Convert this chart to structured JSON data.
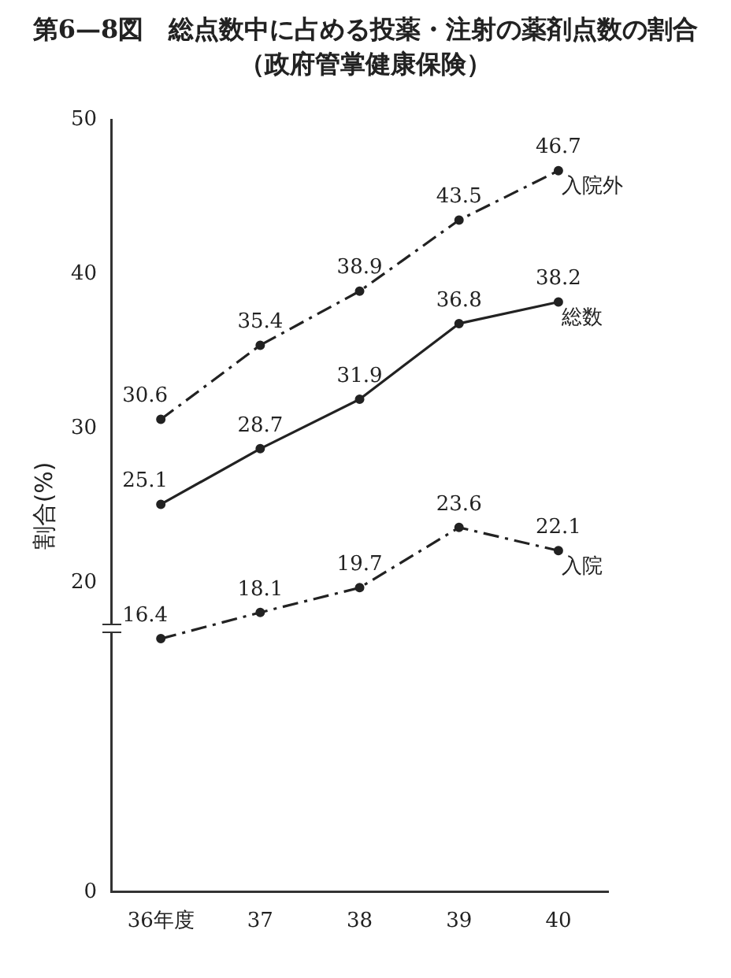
{
  "chart_data": {
    "type": "line",
    "title": "第6—8図　総点数中に占める投薬・注射の薬剤点数の割合（政府管掌健康保険）",
    "ylabel": "割合(%)",
    "categories": [
      "36年度",
      "37",
      "38",
      "39",
      "40"
    ],
    "series": [
      {
        "name": "入院外",
        "color": "#222222",
        "values": [
          30.6,
          35.4,
          38.9,
          43.5,
          46.7
        ],
        "line_style": "dashed"
      },
      {
        "name": "総数",
        "color": "#222222",
        "values": [
          25.1,
          28.7,
          31.9,
          36.8,
          38.2
        ],
        "line_style": "solid"
      },
      {
        "name": "入院",
        "color": "#222222",
        "values": [
          16.4,
          18.1,
          19.7,
          23.6,
          22.1
        ],
        "line_style": "dashed"
      }
    ],
    "ylim": [
      0,
      50
    ],
    "yticks": [
      0,
      20,
      30,
      40,
      50
    ],
    "grid": false,
    "legend": false,
    "marker": "circle",
    "data_labels": true
  }
}
